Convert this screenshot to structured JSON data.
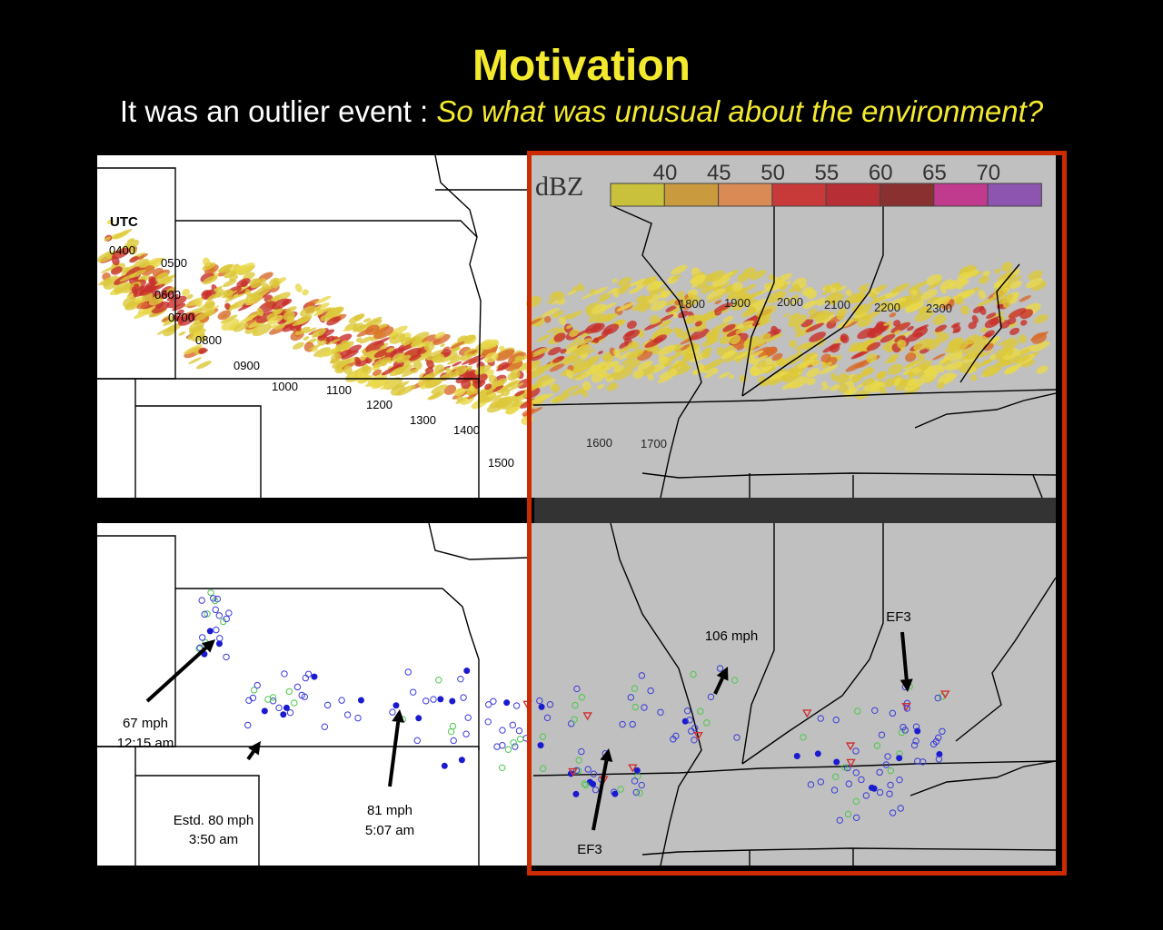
{
  "slide": {
    "title": "Motivation",
    "subtitle_lead": "It was an outlier event : ",
    "subtitle_question": "So what was unusual about the environment?"
  },
  "colors": {
    "title": "#f3e92e",
    "highlight_box": "#cc2a00",
    "map_background_left": "#ffffff",
    "map_background_right": "#c0c0c0"
  },
  "top_map": {
    "utc_label": "UTC",
    "time_labels": [
      "0400",
      "0500",
      "0600",
      "0700",
      "0800",
      "0900",
      "1000",
      "1100",
      "1200",
      "1300",
      "1400",
      "1500",
      "1600",
      "1700",
      "1800",
      "1900",
      "2000",
      "2100",
      "2200",
      "2300"
    ],
    "legend": {
      "unit": "dBZ",
      "ticks": [
        "40",
        "45",
        "50",
        "55",
        "60",
        "65",
        "70"
      ],
      "colors": [
        "#c9c13c",
        "#c99a3e",
        "#d98a55",
        "#c83a3a",
        "#b82e35",
        "#8a3030",
        "#c03b8e",
        "#8d55b0"
      ]
    }
  },
  "bottom_map": {
    "annotations": [
      {
        "line1": "67 mph",
        "line2": "12:15 am"
      },
      {
        "line1": "Estd. 80 mph",
        "line2": "3:50 am"
      },
      {
        "line1": "81 mph",
        "line2": "5:07 am"
      },
      {
        "line1": "EF3",
        "line2": ""
      },
      {
        "line1": "106 mph",
        "line2": ""
      },
      {
        "line1": "EF3",
        "line2": ""
      }
    ]
  }
}
